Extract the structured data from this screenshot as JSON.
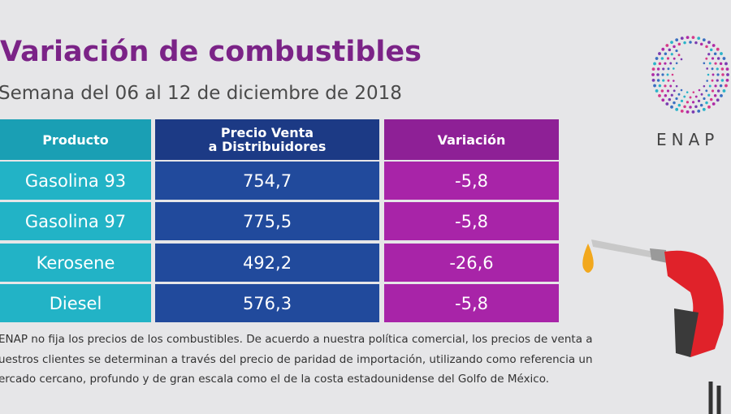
{
  "header": {
    "title": "Variación de combustibles",
    "subtitle": "Semana del 06 al 12 de diciembre de 2018"
  },
  "logo": "ENAP",
  "table": {
    "columns": [
      "Producto",
      "Precio Venta\na Distribuidores",
      "Variación"
    ],
    "rows": [
      [
        "Gasolina 93",
        "754,7",
        "-5,8"
      ],
      [
        "Gasolina 97",
        "775,5",
        "-5,8"
      ],
      [
        "Kerosene",
        "492,2",
        "-26,6"
      ],
      [
        "Diesel",
        "576,3",
        "-5,8"
      ]
    ]
  },
  "footnote": [
    "ENAP no fija los precios de los combustibles. De acuerdo a nuestra política comercial, los precios de venta a",
    "uestros clientes se determinan a través del precio de paridad de importación, utilizando como referencia un",
    "ercado cercano, profundo y de gran escala como el de la costa estadounidense del Golfo de México."
  ]
}
